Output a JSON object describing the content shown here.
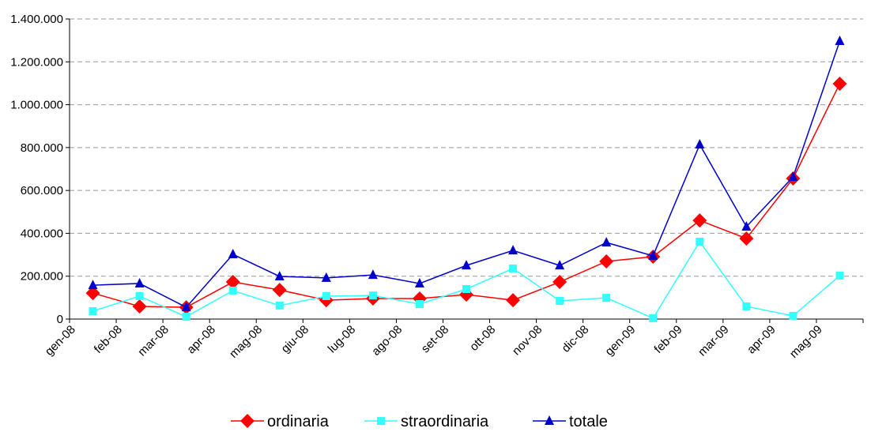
{
  "chart_data": {
    "type": "line",
    "categories": [
      "gen-08",
      "feb-08",
      "mar-08",
      "apr-08",
      "mag-08",
      "giu-08",
      "lug-08",
      "ago-08",
      "set-08",
      "ott-08",
      "nov-08",
      "dic-08",
      "gen-09",
      "feb-09",
      "mar-09",
      "apr-09",
      "mag-09"
    ],
    "series": [
      {
        "name": "ordinaria",
        "color": "#ff0000",
        "marker": "diamond",
        "values": [
          121000,
          59000,
          55000,
          173000,
          136000,
          88000,
          96000,
          96000,
          114000,
          88000,
          173000,
          269000,
          291000,
          460000,
          376000,
          656000,
          1098000
        ]
      },
      {
        "name": "straordinaria",
        "color": "#33ffff",
        "marker": "square",
        "values": [
          37000,
          107000,
          11000,
          133000,
          63000,
          107000,
          110000,
          70000,
          140000,
          236000,
          85000,
          99000,
          4000,
          361000,
          59000,
          15000,
          203000
        ]
      },
      {
        "name": "totale",
        "color": "#0000cc",
        "marker": "triangle",
        "values": [
          158000,
          166000,
          55000,
          302000,
          199000,
          192000,
          206000,
          166000,
          250000,
          320000,
          250000,
          357000,
          295000,
          814000,
          431000,
          663000,
          1297000
        ]
      }
    ],
    "ylim": [
      0,
      1400000
    ],
    "yticks": [
      0,
      {
        "value": 200000,
        "label": "200.000"
      },
      {
        "value": 400000,
        "label": "400.000"
      },
      {
        "value": 600000,
        "label": "600.000"
      },
      {
        "value": 800000,
        "label": "800.000"
      },
      {
        "value": 1000000,
        "label": "1.000.000"
      },
      {
        "value": 1200000,
        "label": "1.200.000"
      },
      {
        "value": 1400000,
        "label": "1.400.000"
      }
    ],
    "grid": true,
    "legend": "bottom"
  }
}
